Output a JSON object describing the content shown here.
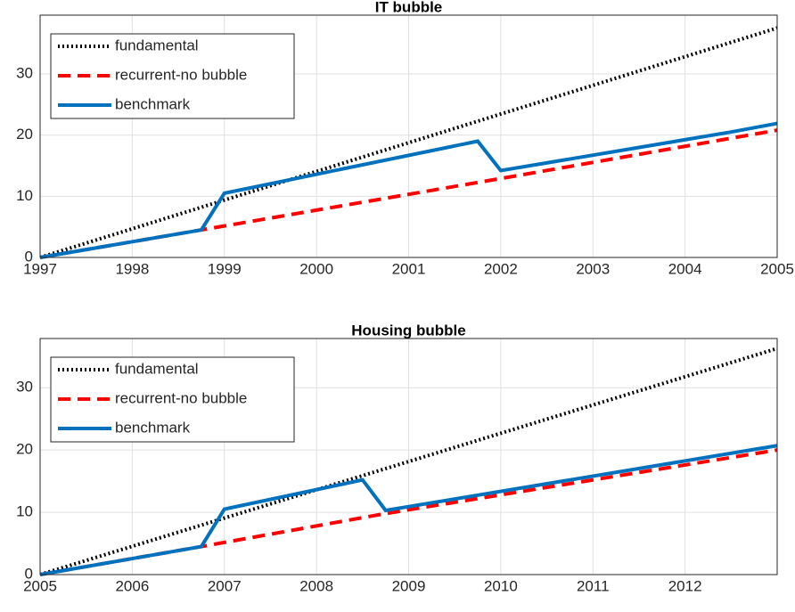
{
  "chart_data": [
    {
      "type": "line",
      "title": "IT bubble",
      "xlim": [
        1997,
        2005
      ],
      "xticks": [
        1997,
        1998,
        1999,
        2000,
        2001,
        2002,
        2003,
        2004,
        2005
      ],
      "ylim": [
        0,
        39.6
      ],
      "yticks": [
        0,
        10,
        20,
        30
      ],
      "grid": true,
      "legend": "upper-left",
      "series": [
        {
          "name": "fundamental",
          "color": "#000000",
          "line_style": "dotted",
          "x": [
            1997,
            2005
          ],
          "values": [
            0,
            37.5
          ]
        },
        {
          "name": "recurrent-no bubble",
          "color": "#ff0000",
          "line_style": "dashed",
          "x": [
            1997,
            1998.75,
            2002,
            2005
          ],
          "values": [
            0,
            4.5,
            12.9,
            20.8
          ]
        },
        {
          "name": "benchmark",
          "color": "#0072bd",
          "line_style": "solid",
          "x": [
            1997,
            1998.75,
            1999,
            2001.75,
            2002,
            2004.5,
            2005
          ],
          "values": [
            0,
            4.5,
            10.5,
            19,
            14.2,
            20.5,
            21.9
          ]
        }
      ]
    },
    {
      "type": "line",
      "title": "Housing bubble",
      "xlim": [
        2005,
        2013
      ],
      "xticks": [
        2005,
        2006,
        2007,
        2008,
        2009,
        2010,
        2011,
        2012
      ],
      "ylim": [
        0,
        37.9
      ],
      "yticks": [
        0,
        10,
        20,
        30
      ],
      "grid": true,
      "legend": "upper-left",
      "series": [
        {
          "name": "fundamental",
          "color": "#000000",
          "line_style": "dotted",
          "x": [
            2005,
            2013
          ],
          "values": [
            0,
            36.3
          ]
        },
        {
          "name": "recurrent-no bubble",
          "color": "#ff0000",
          "line_style": "dashed",
          "x": [
            2005,
            2006.75,
            2008.75,
            2013
          ],
          "values": [
            0,
            4.5,
            9.8,
            20
          ]
        },
        {
          "name": "benchmark",
          "color": "#0072bd",
          "line_style": "solid",
          "x": [
            2005,
            2006.75,
            2007,
            2008.5,
            2008.75,
            2013
          ],
          "values": [
            0,
            4.5,
            10.5,
            15.2,
            10.3,
            20.7
          ]
        }
      ]
    }
  ]
}
